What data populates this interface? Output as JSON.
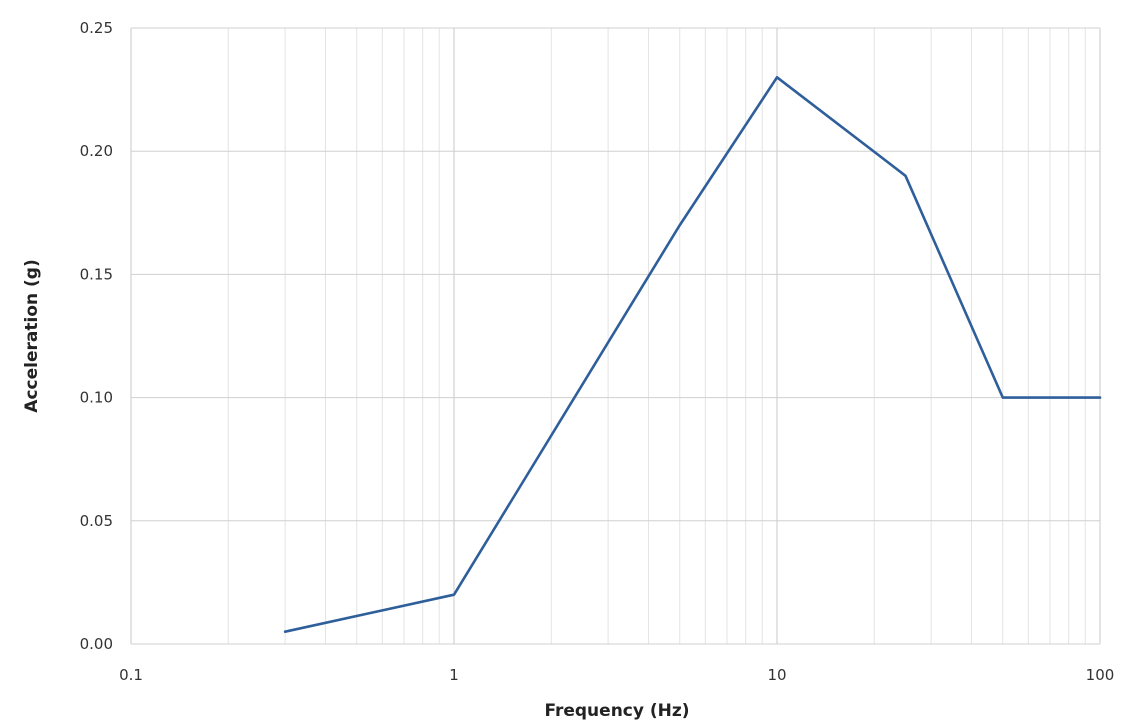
{
  "chart_data": {
    "type": "line",
    "title": "",
    "xlabel": "Frequency (Hz)",
    "ylabel": "Acceleration (g)",
    "x_scale": "log",
    "xlim": [
      0.1,
      100
    ],
    "ylim": [
      0,
      0.25
    ],
    "x_ticks": [
      "0.1",
      "1",
      "10",
      "100"
    ],
    "y_ticks": [
      "0.00",
      "0.05",
      "0.10",
      "0.15",
      "0.20",
      "0.25"
    ],
    "grid": true,
    "legend": "none",
    "series": [
      {
        "color": "#2e5f9a",
        "x": [
          0.3,
          1,
          5,
          10,
          25,
          50,
          100
        ],
        "y": [
          0.005,
          0.02,
          0.17,
          0.23,
          0.19,
          0.1,
          0.1
        ]
      }
    ]
  }
}
